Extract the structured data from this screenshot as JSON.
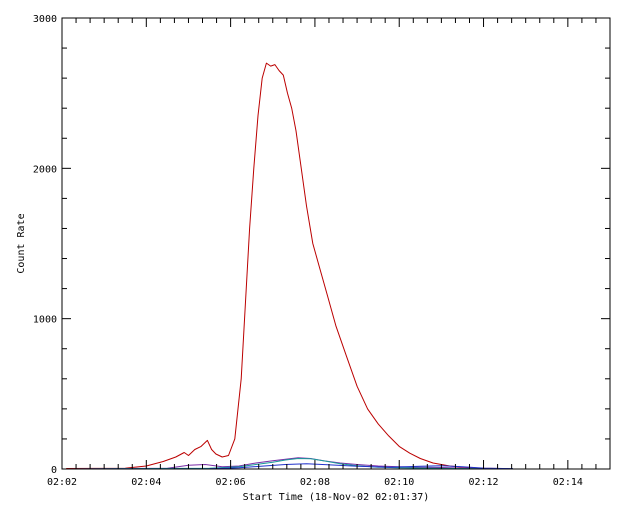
{
  "chart_data": {
    "type": "line",
    "title": "",
    "xlabel": "Start Time (18-Nov-02 02:01:37)",
    "ylabel": "Count Rate",
    "x_units": "minutes past 02:00",
    "xlim": [
      2.0,
      15.0
    ],
    "ylim": [
      0,
      3000
    ],
    "x_ticks": [
      {
        "value": 2,
        "label": "02:02"
      },
      {
        "value": 4,
        "label": "02:04"
      },
      {
        "value": 6,
        "label": "02:06"
      },
      {
        "value": 8,
        "label": "02:08"
      },
      {
        "value": 10,
        "label": "02:10"
      },
      {
        "value": 12,
        "label": "02:12"
      },
      {
        "value": 14,
        "label": "02:14"
      }
    ],
    "y_ticks": [
      {
        "value": 0,
        "label": "0"
      },
      {
        "value": 1000,
        "label": "1000"
      },
      {
        "value": 2000,
        "label": "2000"
      },
      {
        "value": 3000,
        "label": "3000"
      }
    ],
    "grid": false,
    "legend": "none",
    "series": [
      {
        "color": "#bb0000",
        "x": [
          2.1,
          3.5,
          4.0,
          4.4,
          4.7,
          4.9,
          5.0,
          5.15,
          5.3,
          5.45,
          5.55,
          5.65,
          5.8,
          5.95,
          6.1,
          6.25,
          6.35,
          6.45,
          6.55,
          6.65,
          6.75,
          6.85,
          6.95,
          7.05,
          7.15,
          7.25,
          7.35,
          7.45,
          7.55,
          7.65,
          7.8,
          7.95,
          8.1,
          8.3,
          8.5,
          8.75,
          9.0,
          9.25,
          9.5,
          9.75,
          10.0,
          10.25,
          10.5,
          10.8,
          11.2,
          11.6,
          12.0,
          12.4,
          12.7
        ],
        "y": [
          3,
          5,
          20,
          50,
          80,
          110,
          90,
          130,
          150,
          190,
          130,
          100,
          80,
          90,
          200,
          600,
          1100,
          1600,
          2000,
          2350,
          2600,
          2700,
          2680,
          2690,
          2650,
          2620,
          2500,
          2400,
          2250,
          2050,
          1750,
          1500,
          1350,
          1150,
          950,
          750,
          550,
          400,
          300,
          220,
          150,
          105,
          70,
          40,
          20,
          10,
          5,
          3,
          2
        ]
      },
      {
        "color": "#7a2ea8",
        "x": [
          2.1,
          4.5,
          5.0,
          5.4,
          5.8,
          6.2,
          6.6,
          7.0,
          7.3,
          7.6,
          7.9,
          8.2,
          8.6,
          9.0,
          9.5,
          10.0,
          10.5,
          11.0,
          11.5,
          12.0,
          12.7
        ],
        "y": [
          0,
          5,
          25,
          30,
          15,
          20,
          40,
          55,
          65,
          75,
          70,
          55,
          40,
          30,
          20,
          15,
          12,
          10,
          6,
          3,
          1
        ]
      },
      {
        "color": "#1a9a9a",
        "x": [
          2.1,
          5.5,
          6.2,
          6.6,
          7.0,
          7.3,
          7.6,
          7.9,
          8.2,
          8.6,
          9.0,
          9.5,
          10.0,
          11.0,
          12.0,
          12.7
        ],
        "y": [
          0,
          5,
          15,
          30,
          45,
          60,
          70,
          68,
          55,
          35,
          22,
          12,
          8,
          4,
          2,
          1
        ]
      },
      {
        "color": "#2233cc",
        "x": [
          2.1,
          5.5,
          6.2,
          6.8,
          7.3,
          7.8,
          8.3,
          9.0,
          9.8,
          10.5,
          11.0,
          11.5,
          12.0,
          12.7
        ],
        "y": [
          0,
          2,
          8,
          20,
          30,
          35,
          28,
          18,
          12,
          18,
          22,
          15,
          6,
          2
        ]
      }
    ]
  }
}
